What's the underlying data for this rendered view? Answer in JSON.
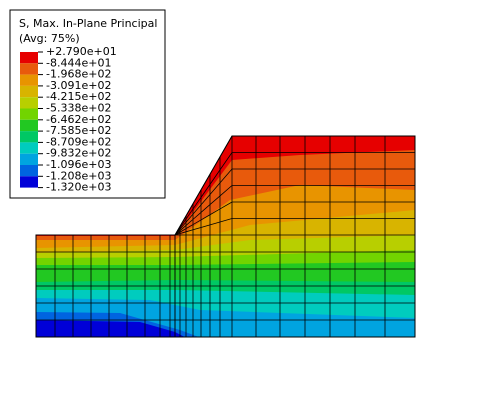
{
  "legend": {
    "title": "S, Max. In-Plane Principal",
    "subtitle": "(Avg: 75%)",
    "labels": [
      "+2.790e+01",
      "-8.444e+01",
      "-1.968e+02",
      "-3.091e+02",
      "-4.215e+02",
      "-5.338e+02",
      "-6.462e+02",
      "-7.585e+02",
      "-8.709e+02",
      "-9.832e+02",
      "-1.096e+03",
      "-1.208e+03",
      "-1.320e+03"
    ]
  }
}
